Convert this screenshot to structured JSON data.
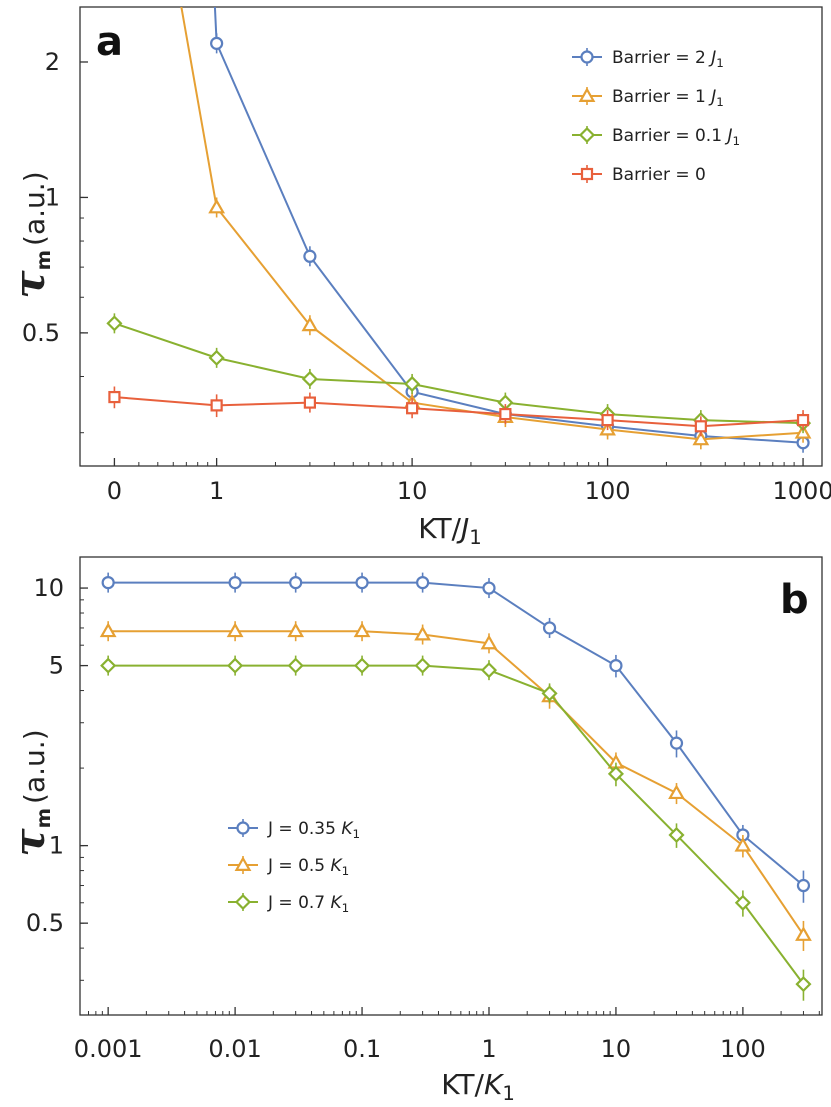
{
  "figure": {
    "colors": {
      "blue": "#5b7fbf",
      "orange": "#e6a033",
      "green": "#89b130",
      "red": "#e8603c",
      "axis": "#333333"
    }
  },
  "chart_data": [
    {
      "panel_label": "a",
      "type": "line",
      "xscale": "log",
      "yscale": "log",
      "xlabel": "KT/",
      "xlabel_var": "J",
      "xlabel_sub": "1",
      "ylabel_var": "τ",
      "ylabel_sub": "m",
      "ylabel_rest": "(a.u.)",
      "x_ticks": [
        {
          "value": 0.3,
          "label": "0"
        },
        {
          "value": 1,
          "label": "1"
        },
        {
          "value": 10,
          "label": "10"
        },
        {
          "value": 100,
          "label": "100"
        },
        {
          "value": 1000,
          "label": "1000"
        }
      ],
      "y_ticks": [
        {
          "value": 0.5,
          "label": "0.5"
        },
        {
          "value": 1,
          "label": "1"
        },
        {
          "value": 2,
          "label": "2"
        }
      ],
      "xlim": [
        0.2,
        1250
      ],
      "ylim": [
        0.253,
        2.65
      ],
      "legend_position": "top-right",
      "x": [
        0.3,
        1,
        3,
        10,
        30,
        100,
        300,
        1000
      ],
      "series": [
        {
          "name": "Barrier = 2 ",
          "name_var": "J",
          "name_sub": "1",
          "color": "#5b7fbf",
          "marker": "circle",
          "values": [
            null,
            2.2,
            0.74,
            0.37,
            0.33,
            0.31,
            0.295,
            0.285
          ],
          "errors": [
            0,
            0.08,
            0.03,
            0.015,
            0.01,
            0.01,
            0.01,
            0.01
          ]
        },
        {
          "name": "Barrier = 1 ",
          "name_var": "J",
          "name_sub": "1",
          "color": "#e6a033",
          "marker": "triangle",
          "values": [
            null,
            0.95,
            0.52,
            0.35,
            0.325,
            0.305,
            0.29,
            0.3
          ],
          "errors": [
            0,
            0.04,
            0.02,
            0.01,
            0.01,
            0.01,
            0.01,
            0.01
          ]
        },
        {
          "name": "Barrier = 0.1 ",
          "name_var": "J",
          "name_sub": "1",
          "color": "#89b130",
          "marker": "diamond",
          "values": [
            0.525,
            0.44,
            0.395,
            0.385,
            0.35,
            0.33,
            0.32,
            0.315
          ],
          "errors": [
            0.02,
            0.02,
            0.015,
            0.01,
            0.01,
            0.01,
            0.01,
            0.01
          ]
        },
        {
          "name": "Barrier = 0",
          "color": "#e8603c",
          "marker": "square",
          "values": [
            0.36,
            0.345,
            0.35,
            0.34,
            0.33,
            0.32,
            0.31,
            0.32
          ],
          "errors": [
            0.02,
            0.02,
            0.015,
            0.01,
            0.01,
            0.01,
            0.01,
            0.01
          ]
        }
      ],
      "steep_tails": [
        {
          "series": 0,
          "points": [
            [
              0.95,
              3.2
            ],
            [
              0.98,
              2.65
            ]
          ]
        },
        {
          "series": 1,
          "points": [
            [
              0.6,
              3.5
            ],
            [
              0.66,
              2.65
            ]
          ]
        }
      ]
    },
    {
      "panel_label": "b",
      "type": "line",
      "xscale": "log",
      "yscale": "log",
      "xlabel": "KT/",
      "xlabel_var": "K",
      "xlabel_sub": "1",
      "ylabel_var": "τ",
      "ylabel_sub": "m",
      "ylabel_rest": "(a.u.)",
      "x_ticks": [
        {
          "value": 0.001,
          "label": "0.001"
        },
        {
          "value": 0.01,
          "label": "0.01"
        },
        {
          "value": 0.1,
          "label": "0.1"
        },
        {
          "value": 1,
          "label": "1"
        },
        {
          "value": 10,
          "label": "10"
        },
        {
          "value": 100,
          "label": "100"
        }
      ],
      "y_ticks": [
        {
          "value": 0.5,
          "label": "0.5"
        },
        {
          "value": 1,
          "label": "1"
        },
        {
          "value": 5,
          "label": "5"
        },
        {
          "value": 10,
          "label": "10"
        }
      ],
      "xlim": [
        0.0006,
        420
      ],
      "ylim": [
        0.22,
        13.2
      ],
      "legend_position": "center-left",
      "x": [
        0.001,
        0.01,
        0.03,
        0.1,
        0.3,
        1,
        3,
        10,
        30,
        100,
        300
      ],
      "series": [
        {
          "name": "J = 0.35 ",
          "name_var": "K",
          "name_sub": "1",
          "color": "#5b7fbf",
          "marker": "circle",
          "values": [
            10.5,
            10.5,
            10.5,
            10.5,
            10.5,
            10,
            7,
            5,
            2.5,
            1.1,
            0.7
          ],
          "errors": [
            0.4,
            0.4,
            0.4,
            0.5,
            0.5,
            0.6,
            0.6,
            0.5,
            0.3,
            0.1,
            0.1
          ]
        },
        {
          "name": "J = 0.5 ",
          "name_var": "K",
          "name_sub": "1",
          "color": "#e6a033",
          "marker": "triangle",
          "values": [
            6.8,
            6.8,
            6.8,
            6.8,
            6.6,
            6.1,
            3.8,
            2.1,
            1.6,
            1,
            0.45
          ],
          "errors": [
            0.2,
            0.2,
            0.2,
            0.3,
            0.3,
            0.4,
            0.4,
            0.2,
            0.15,
            0.1,
            0.06
          ]
        },
        {
          "name": "J = 0.7 ",
          "name_var": "K",
          "name_sub": "1",
          "color": "#89b130",
          "marker": "diamond",
          "values": [
            5,
            5,
            5,
            5,
            5,
            4.8,
            3.9,
            1.9,
            1.1,
            0.6,
            0.29
          ],
          "errors": [
            0.2,
            0.2,
            0.2,
            0.2,
            0.25,
            0.3,
            0.3,
            0.2,
            0.12,
            0.07,
            0.04
          ]
        }
      ]
    }
  ]
}
